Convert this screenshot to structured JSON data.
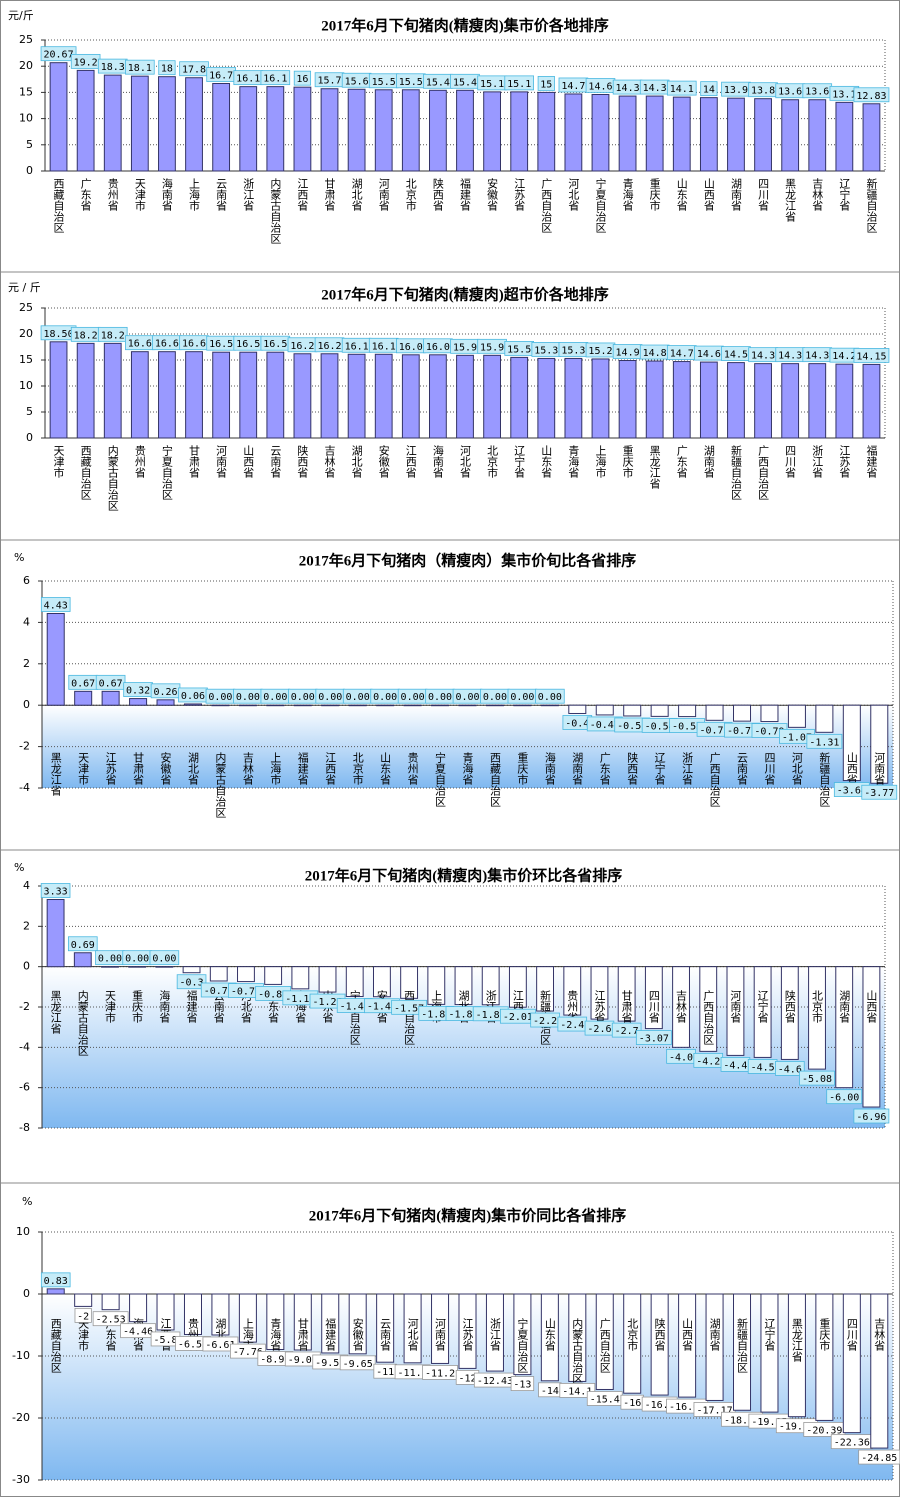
{
  "chart_data": [
    {
      "type": "bar",
      "title": "2017年6月下旬猪肉(精瘦肉)集市价各地排序",
      "unit": "元/斤",
      "color": "#9999ff",
      "grid": true,
      "categories": [
        "西藏自治区",
        "广东省",
        "贵州省",
        "天津市",
        "海南省",
        "上海市",
        "云南省",
        "浙江省",
        "内蒙古自治区",
        "江西省",
        "甘肃省",
        "湖北省",
        "河南省",
        "北京市",
        "陕西省",
        "福建省",
        "安徽省",
        "江苏省",
        "广西自治区",
        "河北省",
        "宁夏自治区",
        "青海省",
        "重庆市",
        "山东省",
        "山西省",
        "湖南省",
        "四川省",
        "黑龙江省",
        "吉林省",
        "辽宁省",
        "新疆自治区"
      ],
      "values": [
        20.67,
        19.2,
        18.3,
        18.1,
        18.0,
        17.8,
        16.7,
        16.1,
        16.1,
        16.0,
        15.7,
        15.6,
        15.5,
        15.5,
        15.4,
        15.4,
        15.1,
        15.1,
        15.0,
        14.7,
        14.6,
        14.3,
        14.3,
        14.1,
        14.0,
        13.9,
        13.8,
        13.6,
        13.6,
        13.1,
        12.83
      ],
      "ylim": [
        0,
        25
      ],
      "yticks": [
        0,
        5,
        10,
        15,
        20,
        25
      ]
    },
    {
      "type": "bar",
      "title": "2017年6月下旬猪肉(精瘦肉)超市价各地排序",
      "unit": "元 / 斤",
      "color": "#9999ff",
      "grid": true,
      "categories": [
        "天津市",
        "西藏自治区",
        "内蒙古自治区",
        "贵州省",
        "宁夏自治区",
        "甘肃省",
        "河南省",
        "山西省",
        "云南省",
        "陕西省",
        "吉林省",
        "湖北省",
        "安徽省",
        "江西省",
        "海南省",
        "河北省",
        "北京市",
        "辽宁省",
        "山东省",
        "青海省",
        "上海市",
        "重庆市",
        "黑龙江省",
        "广东省",
        "湖南省",
        "新疆自治区",
        "广西自治区",
        "四川省",
        "浙江省",
        "江苏省",
        "福建省"
      ],
      "values": [
        18.5,
        18.2,
        18.2,
        16.6,
        16.6,
        16.6,
        16.5,
        16.5,
        16.5,
        16.2,
        16.2,
        16.1,
        16.1,
        16.0,
        16.0,
        15.9,
        15.9,
        15.5,
        15.3,
        15.3,
        15.2,
        14.9,
        14.8,
        14.7,
        14.6,
        14.5,
        14.3,
        14.3,
        14.3,
        14.2,
        14.15
      ],
      "value_labels": [
        "18.50",
        "18.2",
        "18.2",
        "16.6",
        "16.6",
        "16.6",
        "16.5",
        "16.5",
        "16.5",
        "16.2",
        "16.2",
        "16.1",
        "16.1",
        "16.0",
        "16.0",
        "15.9",
        "15.9",
        "15.5",
        "15.3",
        "15.3",
        "15.2",
        "14.9",
        "14.8",
        "14.7",
        "14.6",
        "14.5",
        "14.3",
        "14.3",
        "14.3",
        "14.2",
        "14.15"
      ],
      "ylim": [
        0,
        25
      ],
      "yticks": [
        0,
        5,
        10,
        15,
        20,
        25
      ]
    },
    {
      "type": "bar",
      "title": "2017年6月下旬猪肉（精瘦肉）集市价旬比各省排序",
      "unit": "%",
      "color": "#9999ff",
      "grid": true,
      "categories": [
        "黑龙江省",
        "天津市",
        "江苏省",
        "甘肃省",
        "安徽省",
        "湖北省",
        "内蒙古自治区",
        "吉林省",
        "上海市",
        "福建省",
        "江西省",
        "北京市",
        "山东省",
        "贵州省",
        "宁夏自治区",
        "青海省",
        "西藏自治区",
        "重庆市",
        "海南省",
        "湖南省",
        "广东省",
        "陕西省",
        "辽宁省",
        "浙江省",
        "广西自治区",
        "云南省",
        "四川省",
        "河北省",
        "新疆自治区",
        "山西省",
        "河南省"
      ],
      "values": [
        4.43,
        0.67,
        0.67,
        0.32,
        0.26,
        0.06,
        0,
        0,
        0,
        0,
        0,
        0,
        0,
        0,
        0,
        0,
        0,
        0,
        0,
        -0.4,
        -0.47,
        -0.52,
        -0.54,
        -0.55,
        -0.73,
        -0.77,
        -0.79,
        -1.07,
        -1.31,
        -3.64,
        -3.77
      ],
      "value_labels": [
        "4.43",
        "0.67",
        "0.67",
        "0.32",
        "0.26",
        "0.06",
        "0.00",
        "0.00",
        "0.00",
        "0.00",
        "0.00",
        "0.00",
        "0.00",
        "0.00",
        "0.00",
        "0.00",
        "0.00",
        "0.00",
        "0.00",
        "-0.4",
        "-0.47",
        "-0.52",
        "-0.54",
        "-0.55",
        "-0.73",
        "-0.77",
        "-0.79",
        "-1.07",
        "-1.31",
        "-3.64",
        "-3.77"
      ],
      "ylim": [
        -4,
        6
      ],
      "yticks": [
        -4,
        -2,
        0,
        2,
        4,
        6
      ]
    },
    {
      "type": "bar",
      "title": "2017年6月下旬猪肉(精瘦肉)集市价环比各省排序",
      "unit": "%",
      "color": "#9999ff",
      "grid": true,
      "categories": [
        "黑龙江省",
        "内蒙古自治区",
        "天津市",
        "重庆市",
        "海南省",
        "福建省",
        "云南省",
        "河北省",
        "广东省",
        "青海省",
        "山东省",
        "宁夏自治区",
        "安徽省",
        "西藏自治区",
        "上海市",
        "湖北省",
        "浙江省",
        "江西省",
        "新疆自治区",
        "贵州省",
        "江苏省",
        "甘肃省",
        "四川省",
        "吉林省",
        "广西自治区",
        "河南省",
        "辽宁省",
        "陕西省",
        "北京市",
        "湖南省",
        "山西省"
      ],
      "values": [
        3.33,
        0.69,
        0,
        0,
        0,
        -0.3,
        -0.71,
        -0.74,
        -0.88,
        -1.1,
        -1.26,
        -1.48,
        -1.49,
        -1.57,
        -1.87,
        -1.88,
        -1.89,
        -2.01,
        -2.2,
        -2.4,
        -2.6,
        -2.7,
        -3.07,
        -4.0,
        -4.2,
        -4.4,
        -4.5,
        -4.6,
        -5.08,
        -6,
        -6.96
      ],
      "value_labels": [
        "3.33",
        "0.69",
        "0.00",
        "0.00",
        "0.00",
        "-0.3",
        "-0.71",
        "-0.74",
        "-0.88",
        "-1.10",
        "-1.26",
        "-1.48",
        "-1.49",
        "-1.57",
        "-1.87",
        "-1.88",
        "-1.89",
        "-2.01",
        "-2.2",
        "-2.4",
        "-2.6",
        "-2.7",
        "-3.07",
        "-4.0",
        "-4.2",
        "-4.4",
        "-4.5",
        "-4.6",
        "-5.08",
        "-6.00",
        "-6.96"
      ],
      "ylim": [
        -8,
        4
      ],
      "yticks": [
        -8,
        -6,
        -4,
        -2,
        0,
        2,
        4
      ]
    },
    {
      "type": "bar",
      "title": "2017年6月下旬猪肉(精瘦肉)集市价同比各省排序",
      "unit": "%",
      "color": "#9999ff",
      "grid": true,
      "categories": [
        "西藏自治区",
        "天津市",
        "广东省",
        "海南省",
        "江西省",
        "贵州省",
        "湖北省",
        "上海市",
        "青海省",
        "甘肃省",
        "福建省",
        "安徽省",
        "云南省",
        "河北省",
        "河南省",
        "江苏省",
        "浙江省",
        "宁夏自治区",
        "山东省",
        "内蒙古自治区",
        "广西自治区",
        "北京市",
        "陕西省",
        "山西省",
        "湖南省",
        "新疆自治区",
        "辽宁省",
        "黑龙江省",
        "重庆市",
        "四川省",
        "吉林省"
      ],
      "values": [
        0.83,
        -2.0,
        -2.53,
        -4.46,
        -5.8,
        -6.53,
        -6.61,
        -7.76,
        -8.95,
        -9.03,
        -9.51,
        -9.65,
        -11.0,
        -11.1,
        -11.2,
        -12.0,
        -12.43,
        -13.0,
        -14.0,
        -14.1,
        -15.4,
        -16.0,
        -16.3,
        -16.63,
        -17.17,
        -18.75,
        -19.05,
        -19.79,
        -20.39,
        -22.36,
        -24.85
      ],
      "ylim": [
        -30,
        10
      ],
      "yticks": [
        -30,
        -20,
        -10,
        0,
        10
      ]
    }
  ]
}
